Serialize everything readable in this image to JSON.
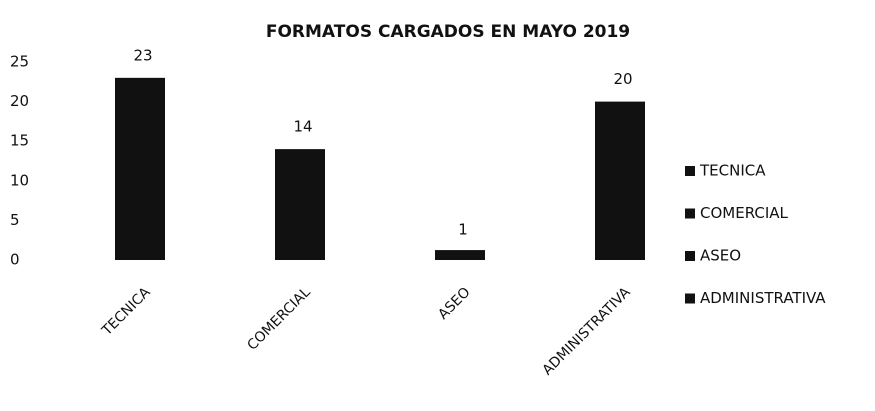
{
  "chart_data": {
    "type": "bar",
    "title": "FORMATOS CARGADOS EN MAYO 2019",
    "categories": [
      "TECNICA",
      "COMERCIAL",
      "ASEO",
      "ADMINISTRATIVA"
    ],
    "values": [
      23,
      14,
      1,
      20
    ],
    "color": "#111111",
    "ylim": [
      0,
      25
    ],
    "yticks": [
      0,
      5,
      10,
      15,
      20,
      25
    ],
    "grid": false,
    "legend": "right"
  }
}
